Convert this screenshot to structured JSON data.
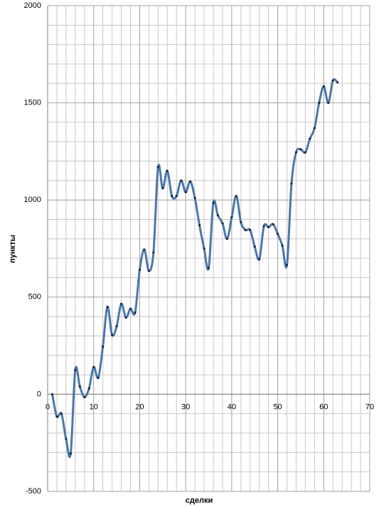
{
  "chart_data": {
    "type": "line",
    "x_label": "сделки",
    "y_label": "пункты",
    "x": [
      1,
      2,
      3,
      4,
      5,
      6,
      7,
      8,
      9,
      10,
      11,
      12,
      13,
      14,
      15,
      16,
      17,
      18,
      19,
      20,
      21,
      22,
      23,
      24,
      25,
      26,
      27,
      28,
      29,
      30,
      31,
      32,
      33,
      34,
      35,
      36,
      37,
      38,
      39,
      40,
      41,
      42,
      43,
      44,
      45,
      46,
      47,
      48,
      49,
      50,
      51,
      52,
      53,
      54,
      55,
      56,
      57,
      58,
      59,
      60,
      61,
      62,
      63
    ],
    "series": [
      {
        "name": "пункты",
        "color": "#4a78a8",
        "values": [
          0,
          -115,
          -100,
          -230,
          -305,
          125,
          40,
          -15,
          30,
          140,
          85,
          245,
          450,
          305,
          350,
          465,
          395,
          440,
          420,
          640,
          745,
          635,
          730,
          1170,
          1060,
          1150,
          1020,
          1020,
          1100,
          1040,
          1095,
          1010,
          870,
          750,
          650,
          985,
          920,
          880,
          800,
          910,
          1020,
          885,
          845,
          845,
          760,
          695,
          865,
          860,
          875,
          825,
          765,
          665,
          1085,
          1245,
          1260,
          1245,
          1315,
          1370,
          1500,
          1585,
          1500,
          1615,
          1605
        ]
      }
    ],
    "xlim": [
      0,
      70
    ],
    "xticks": [
      0,
      10,
      20,
      30,
      40,
      50,
      60,
      70
    ],
    "ylim": [
      -500,
      2000
    ],
    "yticks": [
      -500,
      0,
      500,
      1000,
      1500,
      2000
    ],
    "grid": true,
    "minor_grid_x": 5,
    "minor_grid_y": 5,
    "smooth": true
  }
}
